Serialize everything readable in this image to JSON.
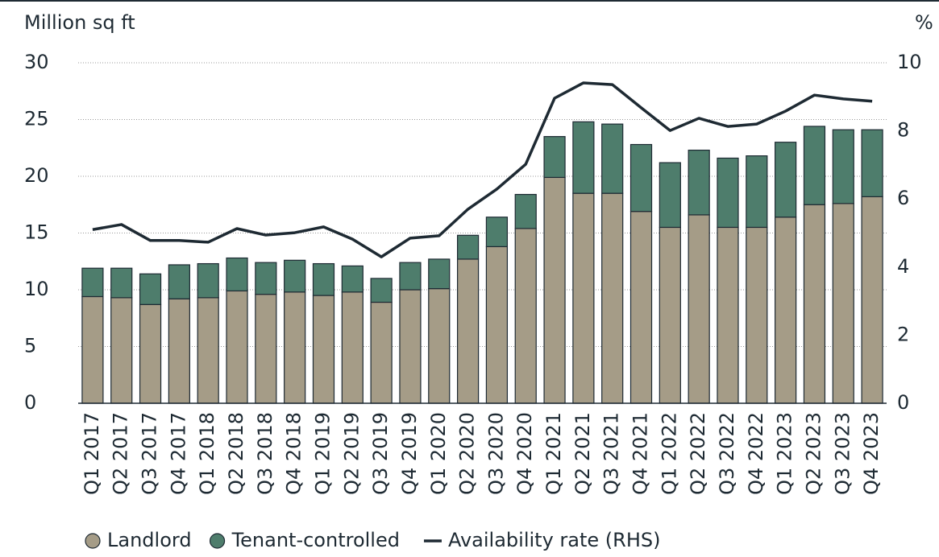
{
  "chart_data": {
    "type": "stacked-bar-line",
    "y_label": "Million sq ft",
    "y2_label": "%",
    "categories": [
      "Q1 2017",
      "Q2 2017",
      "Q3 2017",
      "Q4 2017",
      "Q1 2018",
      "Q2 2018",
      "Q3 2018",
      "Q4 2018",
      "Q1 2019",
      "Q2 2019",
      "Q3 2019",
      "Q4 2019",
      "Q1 2020",
      "Q2 2020",
      "Q3 2020",
      "Q4 2020",
      "Q1 2021",
      "Q2 2021",
      "Q3 2021",
      "Q4 2021",
      "Q1 2022",
      "Q2 2022",
      "Q3 2022",
      "Q4 2022",
      "Q1 2023",
      "Q2 2023",
      "Q3 2023",
      "Q4 2023"
    ],
    "series": [
      {
        "name": "Landlord",
        "color": "#a59c87",
        "kind": "bar",
        "values": [
          9.4,
          9.3,
          8.7,
          9.2,
          9.3,
          9.9,
          9.6,
          9.8,
          9.5,
          9.8,
          8.9,
          10.0,
          10.1,
          12.7,
          13.8,
          15.4,
          19.9,
          18.5,
          18.5,
          16.9,
          15.5,
          16.6,
          15.5,
          15.5,
          16.4,
          17.5,
          17.6,
          18.2
        ]
      },
      {
        "name": "Tenant-controlled",
        "color": "#4e7d6c",
        "kind": "bar",
        "values": [
          2.5,
          2.6,
          2.7,
          3.0,
          3.0,
          2.9,
          2.8,
          2.8,
          2.8,
          2.3,
          2.1,
          2.4,
          2.6,
          2.1,
          2.6,
          3.0,
          3.6,
          6.3,
          6.1,
          5.9,
          5.7,
          5.7,
          6.1,
          6.3,
          6.6,
          6.9,
          6.5,
          5.9
        ]
      },
      {
        "name": "Availability rate (RHS)",
        "color": "#1e2a33",
        "kind": "line",
        "axis": "y2",
        "values": [
          5.1,
          5.25,
          4.78,
          4.78,
          4.73,
          5.13,
          4.94,
          5.01,
          5.18,
          4.82,
          4.3,
          4.85,
          4.92,
          5.7,
          6.29,
          7.02,
          8.96,
          9.41,
          9.36,
          8.68,
          8.01,
          8.37,
          8.13,
          8.2,
          8.58,
          9.05,
          8.94,
          8.87
        ]
      }
    ],
    "ylim": [
      0,
      30
    ],
    "yticks": [
      0,
      5,
      10,
      15,
      20,
      25,
      30
    ],
    "y2lim": [
      0,
      10
    ],
    "y2ticks": [
      0,
      2,
      4,
      6,
      8,
      10
    ],
    "grid": true
  }
}
